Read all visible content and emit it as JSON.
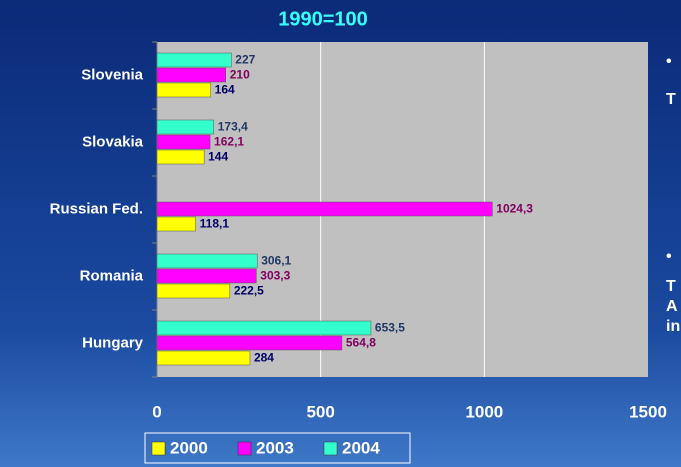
{
  "chart_data": {
    "type": "bar",
    "orientation": "horizontal",
    "title": "1990=100",
    "categories": [
      "Slovenia",
      "Slovakia",
      "Russian Fed.",
      "Romania",
      "Hungary"
    ],
    "series": [
      {
        "name": "2000",
        "color": "#ffff00",
        "label_color": "#000066",
        "values": [
          164,
          144,
          118.1,
          222.5,
          284
        ],
        "value_labels": [
          "164",
          "144",
          "118,1",
          "222,5",
          "284"
        ]
      },
      {
        "name": "2003",
        "color": "#ff00ff",
        "label_color": "#800060",
        "values": [
          210,
          162.1,
          1024.3,
          303.3,
          564.8
        ],
        "value_labels": [
          "210",
          "162,1",
          "1024,3",
          "303,3",
          "564,8"
        ]
      },
      {
        "name": "2004",
        "color": "#33ffcc",
        "label_color": "#1f3864",
        "values": [
          227,
          173.4,
          null,
          306.1,
          653.5
        ],
        "value_labels": [
          "227",
          "173,4",
          null,
          "306,1",
          "653,5"
        ]
      }
    ],
    "xlim": [
      0,
      1500
    ],
    "xticks": [
      0,
      500,
      1000,
      1500
    ],
    "grid": true,
    "legend": "bottom",
    "side_text": [
      "•",
      "T",
      "•",
      "T",
      "A",
      "in"
    ]
  }
}
